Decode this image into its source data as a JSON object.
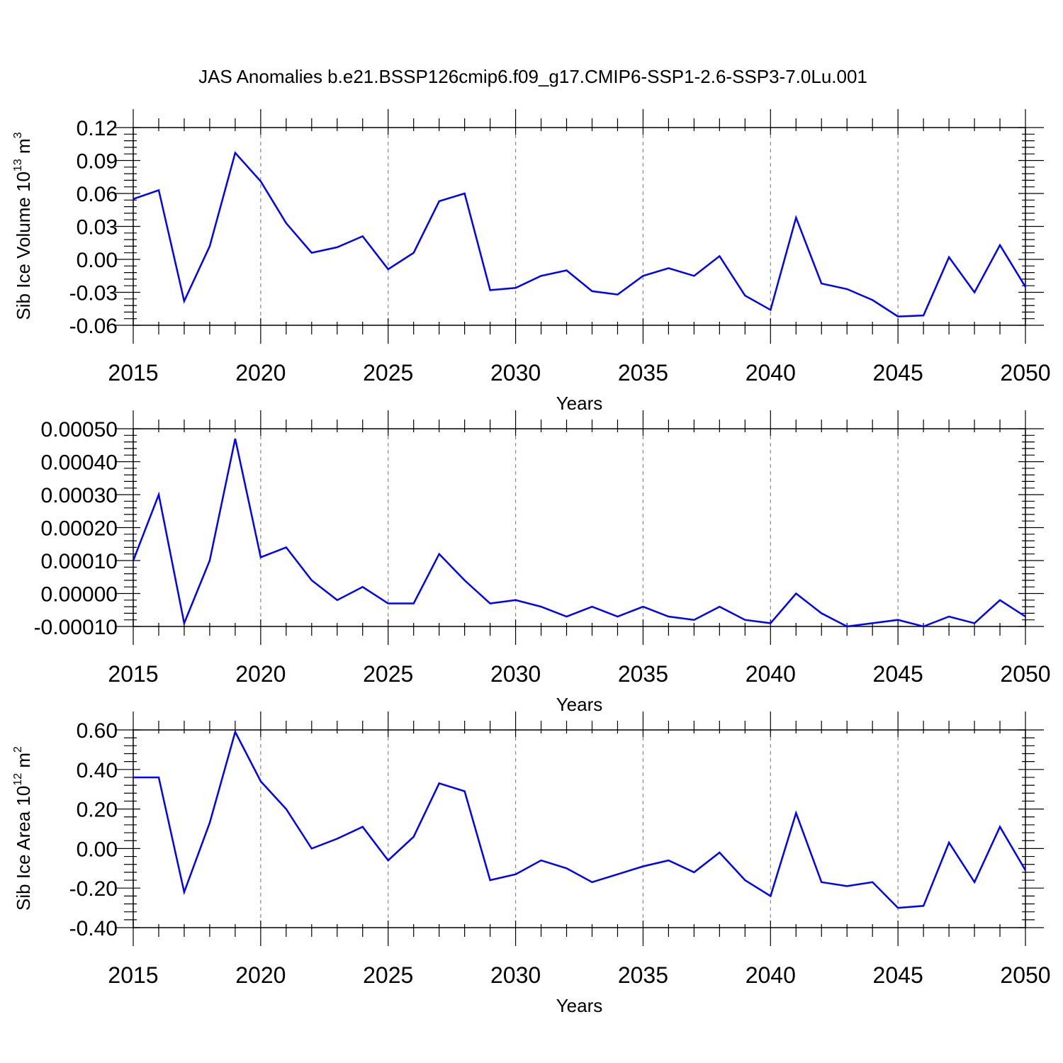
{
  "figure": {
    "title": "JAS Anomalies b.e21.BSSP126cmip6.f09_g17.CMIP6-SSP1-2.6-SSP3-7.0Lu.001"
  },
  "chart_data": [
    {
      "type": "line",
      "ylabel": {
        "main": "Sib Ice Volume 10",
        "sup1": "13",
        "unit": " m",
        "sup2": "3"
      },
      "xlabel": "Years",
      "xlim": [
        2015,
        2050
      ],
      "ylim": [
        -0.06,
        0.12
      ],
      "yticks": [
        0.12,
        0.09,
        0.06,
        0.03,
        0.0,
        -0.03,
        -0.06
      ],
      "ytick_labels": [
        "0.12",
        "0.09",
        "0.06",
        "0.03",
        "0.00",
        "-0.03",
        "-0.06"
      ],
      "xticks": [
        2015,
        2020,
        2025,
        2030,
        2035,
        2040,
        2045,
        2050
      ],
      "xtick_labels": [
        "2015",
        "2020",
        "2025",
        "2030",
        "2035",
        "2040",
        "2045",
        "2050"
      ],
      "grid_x": true,
      "color": "#0000ff",
      "x": [
        2015,
        2016,
        2017,
        2018,
        2019,
        2020,
        2021,
        2022,
        2023,
        2024,
        2025,
        2026,
        2027,
        2028,
        2029,
        2030,
        2031,
        2032,
        2033,
        2034,
        2035,
        2036,
        2037,
        2038,
        2039,
        2040,
        2041,
        2042,
        2043,
        2044,
        2045,
        2046,
        2047,
        2048,
        2049,
        2050
      ],
      "values": [
        0.055,
        0.063,
        -0.038,
        0.012,
        0.097,
        0.071,
        0.033,
        0.006,
        0.011,
        0.021,
        -0.009,
        0.006,
        0.053,
        0.06,
        -0.028,
        -0.026,
        -0.015,
        -0.01,
        -0.029,
        -0.032,
        -0.015,
        -0.008,
        -0.015,
        0.003,
        -0.033,
        -0.046,
        0.038,
        -0.022,
        -0.027,
        -0.037,
        -0.052,
        -0.051,
        0.002,
        -0.03,
        0.013,
        -0.025
      ]
    },
    {
      "type": "line",
      "xlabel": "Years",
      "xlim": [
        2015,
        2050
      ],
      "ylim": [
        -0.0001,
        0.0005
      ],
      "yticks": [
        0.0005,
        0.0004,
        0.0003,
        0.0002,
        0.0001,
        0.0,
        -0.0001
      ],
      "ytick_labels": [
        "0.00050",
        "0.00040",
        "0.00030",
        "0.00020",
        "0.00010",
        "0.00000",
        "-0.00010"
      ],
      "xticks": [
        2015,
        2020,
        2025,
        2030,
        2035,
        2040,
        2045,
        2050
      ],
      "xtick_labels": [
        "2015",
        "2020",
        "2025",
        "2030",
        "2035",
        "2040",
        "2045",
        "2050"
      ],
      "grid_x": true,
      "color": "#0000ff",
      "x": [
        2015,
        2016,
        2017,
        2018,
        2019,
        2020,
        2021,
        2022,
        2023,
        2024,
        2025,
        2026,
        2027,
        2028,
        2029,
        2030,
        2031,
        2032,
        2033,
        2034,
        2035,
        2036,
        2037,
        2038,
        2039,
        2040,
        2041,
        2042,
        2043,
        2044,
        2045,
        2046,
        2047,
        2048,
        2049,
        2050
      ],
      "values": [
        0.0001,
        0.0003,
        -9e-05,
        0.0001,
        0.00047,
        0.00011,
        0.00014,
        4e-05,
        -2e-05,
        2e-05,
        -3e-05,
        -3e-05,
        0.00012,
        4e-05,
        -3e-05,
        -2e-05,
        -4e-05,
        -7e-05,
        -4e-05,
        -7e-05,
        -4e-05,
        -7e-05,
        -8e-05,
        -4e-05,
        -8e-05,
        -9e-05,
        0.0,
        -6e-05,
        -0.0001,
        -9e-05,
        -8e-05,
        -0.0001,
        -7e-05,
        -9e-05,
        -2e-05,
        -7e-05
      ]
    },
    {
      "type": "line",
      "ylabel": {
        "main": "Sib Ice Area 10",
        "sup1": "12",
        "unit": " m",
        "sup2": "2"
      },
      "xlabel": "Years",
      "xlim": [
        2015,
        2050
      ],
      "ylim": [
        -0.4,
        0.6
      ],
      "yticks": [
        0.6,
        0.4,
        0.2,
        0.0,
        -0.2,
        -0.4
      ],
      "ytick_labels": [
        "0.60",
        "0.40",
        "0.20",
        "0.00",
        "-0.20",
        "-0.40"
      ],
      "xticks": [
        2015,
        2020,
        2025,
        2030,
        2035,
        2040,
        2045,
        2050
      ],
      "xtick_labels": [
        "2015",
        "2020",
        "2025",
        "2030",
        "2035",
        "2040",
        "2045",
        "2050"
      ],
      "grid_x": true,
      "color": "#0000ff",
      "x": [
        2015,
        2016,
        2017,
        2018,
        2019,
        2020,
        2021,
        2022,
        2023,
        2024,
        2025,
        2026,
        2027,
        2028,
        2029,
        2030,
        2031,
        2032,
        2033,
        2034,
        2035,
        2036,
        2037,
        2038,
        2039,
        2040,
        2041,
        2042,
        2043,
        2044,
        2045,
        2046,
        2047,
        2048,
        2049,
        2050
      ],
      "values": [
        0.36,
        0.36,
        -0.22,
        0.13,
        0.59,
        0.34,
        0.2,
        0.0,
        0.05,
        0.11,
        -0.06,
        0.06,
        0.33,
        0.29,
        -0.16,
        -0.13,
        -0.06,
        -0.1,
        -0.17,
        -0.13,
        -0.09,
        -0.06,
        -0.12,
        -0.02,
        -0.16,
        -0.24,
        0.18,
        -0.17,
        -0.19,
        -0.17,
        -0.3,
        -0.29,
        0.03,
        -0.17,
        0.11,
        -0.11
      ]
    }
  ]
}
